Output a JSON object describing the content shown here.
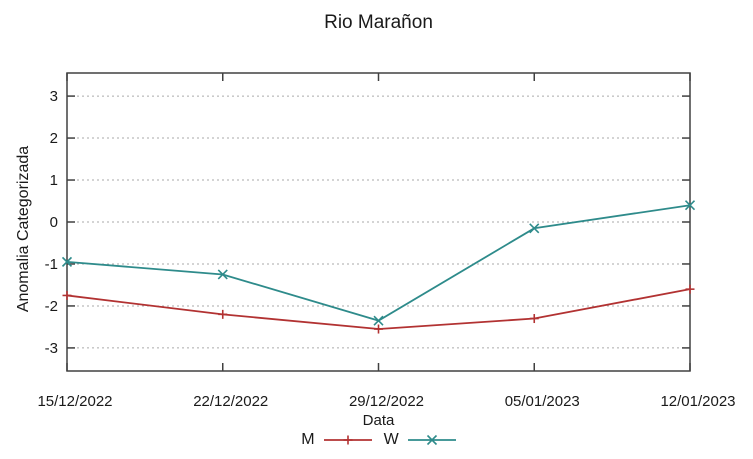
{
  "chart_data": {
    "type": "line",
    "title": "Rio Marañon",
    "xlabel": "Data",
    "ylabel": "Anomalia Categorizada",
    "x": [
      "15/12/2022",
      "22/12/2022",
      "29/12/2022",
      "05/01/2023",
      "12/01/2023"
    ],
    "yticks": [
      -3,
      -2,
      -1,
      0,
      1,
      2,
      3
    ],
    "ylim": [
      -3.55,
      3.55
    ],
    "grid": "horizontal-dotted",
    "legend_position": "bottom-center",
    "series": [
      {
        "name": "M",
        "color": "#b23232",
        "marker": "plus",
        "values": [
          -1.75,
          -2.2,
          -2.55,
          -2.3,
          -1.6
        ]
      },
      {
        "name": "W",
        "color": "#2e8b8b",
        "marker": "cross",
        "values": [
          -0.95,
          -1.25,
          -2.35,
          -0.15,
          0.4
        ]
      }
    ],
    "colors": {
      "axis": "#404040",
      "grid": "#aaaaaa",
      "text": "#1a1a1a"
    }
  }
}
